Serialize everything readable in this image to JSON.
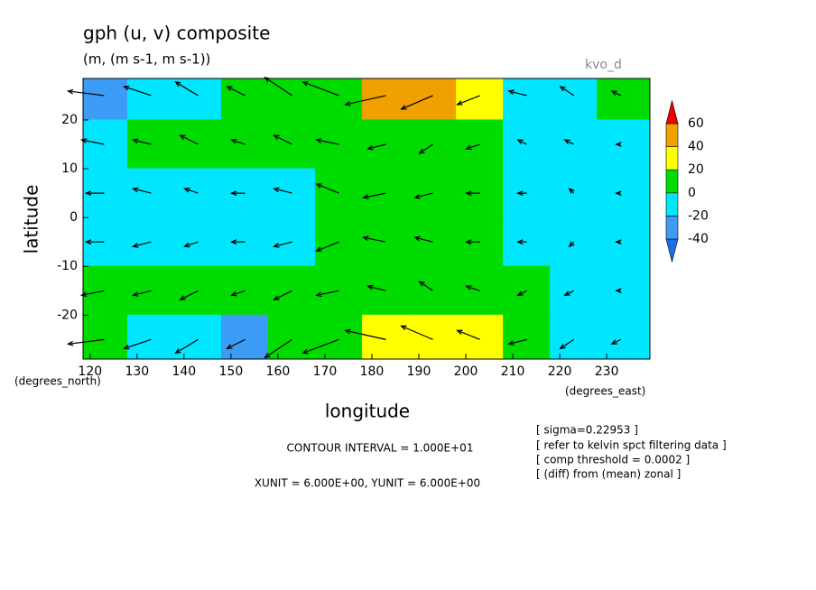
{
  "chart_data": {
    "type": "contour",
    "title": "gph (u, v) composite",
    "subtitle": "(m, (m s-1, m s-1))",
    "tag": "kvo_d",
    "x_label": "longitude",
    "y_label": "latitude",
    "x_unit": "(degrees_east)",
    "y_unit": "(degrees_north)",
    "contour_interval": "CONTOUR INTERVAL = 1.000E+01",
    "vector_units": "XUNIT = 6.000E+00, YUNIT = 6.000E+00",
    "notes": [
      "[ sigma=0.22953 ]",
      "[ refer to kelvin spct filtering data ]",
      "[ comp threshold = 0.0002 ]",
      "[ (diff) from (mean) zonal ]"
    ],
    "xlim": [
      118.5,
      239.2
    ],
    "ylim": [
      -29,
      28.5
    ],
    "xticks": [
      120,
      130,
      140,
      150,
      160,
      170,
      180,
      190,
      200,
      210,
      220,
      230
    ],
    "yticks": [
      -20,
      -10,
      0,
      10,
      20
    ],
    "levels": [
      -40,
      -20,
      0,
      20,
      40,
      60
    ],
    "colors": [
      "#1e6ee6",
      "#3c9cf5",
      "#00e6ff",
      "#00dc00",
      "#ffff00",
      "#f0a000",
      "#f00000"
    ],
    "lon": [
      123,
      133,
      143,
      153,
      163,
      173,
      183,
      193,
      203,
      213,
      223,
      233
    ],
    "lat": [
      25,
      15,
      5,
      -5,
      -15,
      -25
    ],
    "z": [
      [
        -30,
        -10,
        -10,
        0,
        5,
        10,
        40,
        50,
        20,
        -10,
        -10,
        5
      ],
      [
        -10,
        5,
        5,
        5,
        5,
        5,
        10,
        5,
        5,
        -10,
        -10,
        -10
      ],
      [
        -10,
        -10,
        -10,
        -10,
        -10,
        5,
        5,
        5,
        5,
        -10,
        -10,
        -10
      ],
      [
        -10,
        -10,
        -10,
        -10,
        -10,
        5,
        5,
        5,
        5,
        -10,
        -10,
        -10
      ],
      [
        5,
        5,
        5,
        5,
        5,
        5,
        5,
        5,
        5,
        5,
        -10,
        -10
      ],
      [
        5,
        -10,
        -10,
        -30,
        5,
        10,
        30,
        35,
        35,
        10,
        -10,
        -10
      ]
    ],
    "u": [
      [
        -8,
        -6,
        -5,
        -4,
        -6,
        -8,
        -9,
        -7,
        -5,
        -4,
        -3,
        -2
      ],
      [
        -5,
        -4,
        -4,
        -3,
        -4,
        -5,
        -4,
        -3,
        -3,
        -2,
        -2,
        -1
      ],
      [
        -4,
        -4,
        -3,
        -3,
        -4,
        -5,
        -5,
        -4,
        -3,
        -2,
        -1,
        -1
      ],
      [
        -4,
        -4,
        -3,
        -3,
        -4,
        -5,
        -5,
        -4,
        -3,
        -2,
        -1,
        -1
      ],
      [
        -5,
        -4,
        -4,
        -3,
        -4,
        -5,
        -4,
        -3,
        -3,
        -2,
        -2,
        -1
      ],
      [
        -8,
        -6,
        -5,
        -4,
        -6,
        -8,
        -9,
        -7,
        -5,
        -4,
        -3,
        -2
      ]
    ],
    "v": [
      [
        1,
        2,
        3,
        2,
        4,
        3,
        -2,
        -3,
        -2,
        1,
        2,
        1
      ],
      [
        1,
        1,
        2,
        1,
        2,
        1,
        -1,
        -2,
        -1,
        1,
        1,
        0
      ],
      [
        0,
        1,
        1,
        0,
        1,
        2,
        -1,
        -1,
        0,
        0,
        1,
        0
      ],
      [
        0,
        -1,
        -1,
        0,
        -1,
        -2,
        1,
        1,
        0,
        0,
        -1,
        0
      ],
      [
        -1,
        -1,
        -2,
        -1,
        -2,
        -1,
        1,
        2,
        1,
        -1,
        -1,
        0
      ],
      [
        -1,
        -2,
        -3,
        -2,
        -4,
        -3,
        2,
        3,
        2,
        -1,
        -2,
        -1
      ]
    ]
  }
}
